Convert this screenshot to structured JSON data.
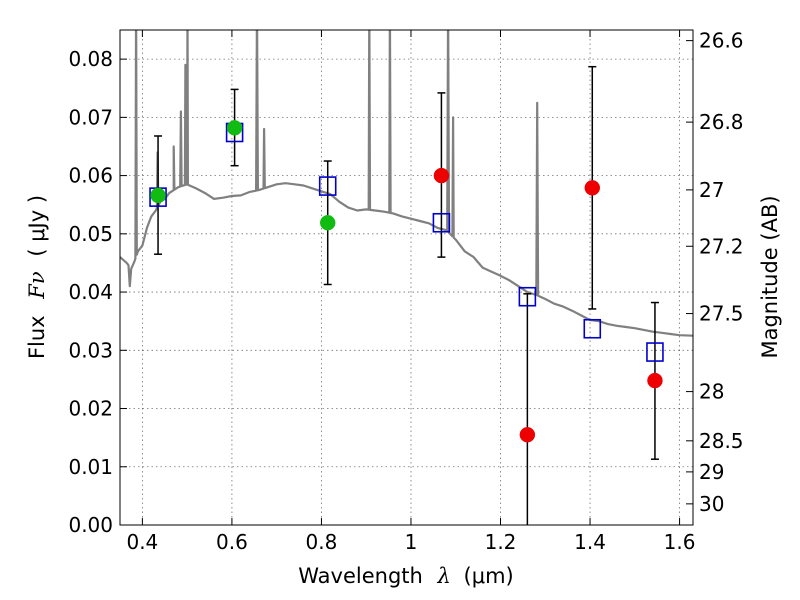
{
  "colors": {
    "spectrum": "#808080",
    "model": "#0000cc",
    "green": "#11bb11",
    "red": "#ee0000",
    "errorbar": "#000000"
  },
  "labels": {
    "x_prefix": "Wavelength",
    "x_lambda": "λ",
    "x_unit": "(μm)",
    "y_flux": "Flux",
    "y_fnu": "Fν",
    "y_unit": "( μJy )",
    "y2": "Magnitude (AB)"
  },
  "chart_data": {
    "type": "scatter",
    "xlim": [
      0.35,
      1.63
    ],
    "ylim": [
      0.0,
      0.085
    ],
    "grid": true,
    "x_ticks": [
      0.4,
      0.6,
      0.8,
      1.0,
      1.2,
      1.4,
      1.6
    ],
    "x_tick_labels": [
      "0.4",
      "0.6",
      "0.8",
      "1",
      "1.2",
      "1.4",
      "1.6"
    ],
    "y_ticks": [
      0.0,
      0.01,
      0.02,
      0.03,
      0.04,
      0.05,
      0.06,
      0.07,
      0.08
    ],
    "y_tick_labels": [
      "0.00",
      "0.01",
      "0.02",
      "0.03",
      "0.04",
      "0.05",
      "0.06",
      "0.07",
      "0.08"
    ],
    "y2_ticks": [
      {
        "label": "26.6",
        "mag": 26.6
      },
      {
        "label": "26.8",
        "mag": 26.8
      },
      {
        "label": "27",
        "mag": 27.0
      },
      {
        "label": "27.2",
        "mag": 27.2
      },
      {
        "label": "27.5",
        "mag": 27.5
      },
      {
        "label": "28",
        "mag": 28.0
      },
      {
        "label": "28.5",
        "mag": 28.5
      },
      {
        "label": "29",
        "mag": 29.0
      },
      {
        "label": "30",
        "mag": 30.0
      }
    ],
    "model_points": [
      {
        "x": 0.435,
        "y": 0.0563
      },
      {
        "x": 0.606,
        "y": 0.0674
      },
      {
        "x": 0.814,
        "y": 0.0582
      },
      {
        "x": 1.068,
        "y": 0.0519
      },
      {
        "x": 1.26,
        "y": 0.0392
      },
      {
        "x": 1.405,
        "y": 0.0337
      },
      {
        "x": 1.545,
        "y": 0.0297
      }
    ],
    "observed_points": [
      {
        "x": 0.435,
        "y": 0.0566,
        "yerr_low": 0.0465,
        "yerr_high": 0.0668,
        "color": "green"
      },
      {
        "x": 0.606,
        "y": 0.0682,
        "yerr_low": 0.0617,
        "yerr_high": 0.0748,
        "color": "green"
      },
      {
        "x": 0.814,
        "y": 0.0519,
        "yerr_low": 0.0413,
        "yerr_high": 0.0625,
        "color": "green"
      },
      {
        "x": 1.068,
        "y": 0.06,
        "yerr_low": 0.046,
        "yerr_high": 0.0742,
        "color": "red"
      },
      {
        "x": 1.26,
        "y": 0.0155,
        "yerr_low": 0.0,
        "yerr_high": 0.0397,
        "color": "red"
      },
      {
        "x": 1.405,
        "y": 0.0579,
        "yerr_low": 0.0371,
        "yerr_high": 0.0787,
        "color": "red"
      },
      {
        "x": 1.545,
        "y": 0.0248,
        "yerr_low": 0.0113,
        "yerr_high": 0.0382,
        "color": "red"
      }
    ],
    "spectrum": {
      "continuum": [
        [
          0.35,
          0.046
        ],
        [
          0.365,
          0.045
        ],
        [
          0.375,
          0.044
        ],
        [
          0.382,
          0.0452
        ],
        [
          0.39,
          0.047
        ],
        [
          0.4,
          0.048
        ],
        [
          0.41,
          0.051
        ],
        [
          0.42,
          0.053
        ],
        [
          0.43,
          0.054
        ],
        [
          0.44,
          0.0555
        ],
        [
          0.45,
          0.056
        ],
        [
          0.46,
          0.057
        ],
        [
          0.47,
          0.0575
        ],
        [
          0.48,
          0.058
        ],
        [
          0.5,
          0.0585
        ],
        [
          0.52,
          0.0578
        ],
        [
          0.54,
          0.057
        ],
        [
          0.56,
          0.056
        ],
        [
          0.58,
          0.0562
        ],
        [
          0.6,
          0.0565
        ],
        [
          0.62,
          0.0566
        ],
        [
          0.64,
          0.0572
        ],
        [
          0.66,
          0.0575
        ],
        [
          0.68,
          0.058
        ],
        [
          0.7,
          0.0585
        ],
        [
          0.72,
          0.0587
        ],
        [
          0.74,
          0.0585
        ],
        [
          0.76,
          0.0583
        ],
        [
          0.78,
          0.0578
        ],
        [
          0.8,
          0.0573
        ],
        [
          0.82,
          0.0568
        ],
        [
          0.84,
          0.0555
        ],
        [
          0.86,
          0.0545
        ],
        [
          0.88,
          0.054
        ],
        [
          0.9,
          0.0542
        ],
        [
          0.92,
          0.054
        ],
        [
          0.94,
          0.0538
        ],
        [
          0.96,
          0.0535
        ],
        [
          0.98,
          0.053
        ],
        [
          1.0,
          0.0526
        ],
        [
          1.02,
          0.0522
        ],
        [
          1.04,
          0.0518
        ],
        [
          1.06,
          0.051
        ],
        [
          1.08,
          0.0506
        ],
        [
          1.1,
          0.049
        ],
        [
          1.12,
          0.047
        ],
        [
          1.14,
          0.046
        ],
        [
          1.16,
          0.0442
        ],
        [
          1.18,
          0.0435
        ],
        [
          1.2,
          0.0428
        ],
        [
          1.22,
          0.042
        ],
        [
          1.24,
          0.041
        ],
        [
          1.26,
          0.04
        ],
        [
          1.28,
          0.0395
        ],
        [
          1.3,
          0.0388
        ],
        [
          1.32,
          0.038
        ],
        [
          1.34,
          0.0375
        ],
        [
          1.36,
          0.0368
        ],
        [
          1.38,
          0.036
        ],
        [
          1.4,
          0.0352
        ],
        [
          1.42,
          0.035
        ],
        [
          1.44,
          0.0345
        ],
        [
          1.46,
          0.0342
        ],
        [
          1.48,
          0.034
        ],
        [
          1.5,
          0.0338
        ],
        [
          1.52,
          0.0335
        ],
        [
          1.54,
          0.0332
        ],
        [
          1.56,
          0.033
        ],
        [
          1.58,
          0.0328
        ],
        [
          1.6,
          0.0326
        ],
        [
          1.63,
          0.0325
        ]
      ],
      "features": [
        {
          "x": 0.372,
          "y": 0.041,
          "w": 0.006
        },
        {
          "x": 0.386,
          "y": 0.09,
          "w": 0.003
        },
        {
          "x": 0.434,
          "y": 0.064,
          "w": 0.003
        },
        {
          "x": 0.47,
          "y": 0.065,
          "w": 0.003
        },
        {
          "x": 0.486,
          "y": 0.071,
          "w": 0.003
        },
        {
          "x": 0.496,
          "y": 0.079,
          "w": 0.002
        },
        {
          "x": 0.5007,
          "y": 0.09,
          "w": 0.002
        },
        {
          "x": 0.656,
          "y": 0.09,
          "w": 0.004
        },
        {
          "x": 0.672,
          "y": 0.068,
          "w": 0.003
        },
        {
          "x": 0.907,
          "y": 0.09,
          "w": 0.003
        },
        {
          "x": 0.953,
          "y": 0.09,
          "w": 0.003
        },
        {
          "x": 1.083,
          "y": 0.09,
          "w": 0.004
        },
        {
          "x": 1.094,
          "y": 0.07,
          "w": 0.003
        },
        {
          "x": 1.282,
          "y": 0.0725,
          "w": 0.004
        }
      ]
    }
  }
}
